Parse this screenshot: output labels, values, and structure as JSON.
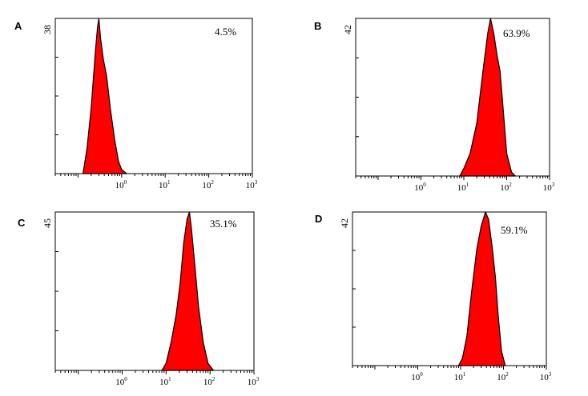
{
  "chart_data": [
    {
      "type": "histogram",
      "panel_label": "A",
      "percentage": "4.5%",
      "y_max_label": "38",
      "x_scale": "log",
      "xlim": [
        0.03,
        1000
      ],
      "ylim": [
        0,
        38
      ],
      "x_ticks": [
        {
          "value": 1,
          "base": "10",
          "exp": "0"
        },
        {
          "value": 10,
          "base": "10",
          "exp": "1"
        },
        {
          "value": 100,
          "base": "10",
          "exp": "2"
        },
        {
          "value": 1000,
          "base": "10",
          "exp": "3"
        }
      ],
      "fill_color": "#ff0000",
      "points": [
        [
          0.13,
          0
        ],
        [
          0.16,
          6
        ],
        [
          0.2,
          16
        ],
        [
          0.25,
          30
        ],
        [
          0.28,
          36
        ],
        [
          0.3,
          38
        ],
        [
          0.33,
          33
        ],
        [
          0.38,
          28
        ],
        [
          0.45,
          24
        ],
        [
          0.55,
          16
        ],
        [
          0.7,
          8
        ],
        [
          0.85,
          3
        ],
        [
          1.0,
          1
        ],
        [
          1.3,
          0
        ]
      ]
    },
    {
      "type": "histogram",
      "panel_label": "B",
      "percentage": "63.9%",
      "y_max_label": "42",
      "x_scale": "log",
      "xlim": [
        0.03,
        1000
      ],
      "ylim": [
        0,
        42
      ],
      "x_ticks": [
        {
          "value": 1,
          "base": "10",
          "exp": "0"
        },
        {
          "value": 10,
          "base": "10",
          "exp": "1"
        },
        {
          "value": 100,
          "base": "10",
          "exp": "2"
        },
        {
          "value": 1000,
          "base": "10",
          "exp": "3"
        }
      ],
      "fill_color": "#ff0000",
      "points": [
        [
          8,
          0
        ],
        [
          10,
          2
        ],
        [
          14,
          6
        ],
        [
          20,
          14
        ],
        [
          28,
          28
        ],
        [
          36,
          38
        ],
        [
          42,
          42
        ],
        [
          50,
          38
        ],
        [
          60,
          32
        ],
        [
          70,
          28
        ],
        [
          80,
          20
        ],
        [
          100,
          6
        ],
        [
          130,
          1
        ],
        [
          160,
          0
        ]
      ]
    },
    {
      "type": "histogram",
      "panel_label": "C",
      "percentage": "35.1%",
      "y_max_label": "45",
      "x_scale": "log",
      "xlim": [
        0.03,
        1000
      ],
      "ylim": [
        0,
        45
      ],
      "x_ticks": [
        {
          "value": 1,
          "base": "10",
          "exp": "0"
        },
        {
          "value": 10,
          "base": "10",
          "exp": "1"
        },
        {
          "value": 100,
          "base": "10",
          "exp": "2"
        },
        {
          "value": 1000,
          "base": "10",
          "exp": "3"
        }
      ],
      "fill_color": "#ff0000",
      "points": [
        [
          8,
          0
        ],
        [
          10,
          2
        ],
        [
          13,
          8
        ],
        [
          17,
          16
        ],
        [
          21,
          25
        ],
        [
          25,
          36
        ],
        [
          30,
          43
        ],
        [
          34,
          45
        ],
        [
          38,
          40
        ],
        [
          45,
          30
        ],
        [
          55,
          18
        ],
        [
          70,
          8
        ],
        [
          90,
          2
        ],
        [
          120,
          0
        ]
      ]
    },
    {
      "type": "histogram",
      "panel_label": "D",
      "percentage": "59.1%",
      "y_max_label": "42",
      "x_scale": "log",
      "xlim": [
        0.03,
        1000
      ],
      "ylim": [
        0,
        42
      ],
      "x_ticks": [
        {
          "value": 1,
          "base": "10",
          "exp": "0"
        },
        {
          "value": 10,
          "base": "10",
          "exp": "1"
        },
        {
          "value": 100,
          "base": "10",
          "exp": "2"
        },
        {
          "value": 1000,
          "base": "10",
          "exp": "3"
        }
      ],
      "fill_color": "#ff0000",
      "points": [
        [
          9,
          0
        ],
        [
          11,
          2
        ],
        [
          14,
          8
        ],
        [
          18,
          20
        ],
        [
          24,
          32
        ],
        [
          30,
          38
        ],
        [
          38,
          42
        ],
        [
          45,
          40
        ],
        [
          55,
          32
        ],
        [
          65,
          24
        ],
        [
          75,
          14
        ],
        [
          90,
          4
        ],
        [
          110,
          0
        ]
      ]
    }
  ]
}
